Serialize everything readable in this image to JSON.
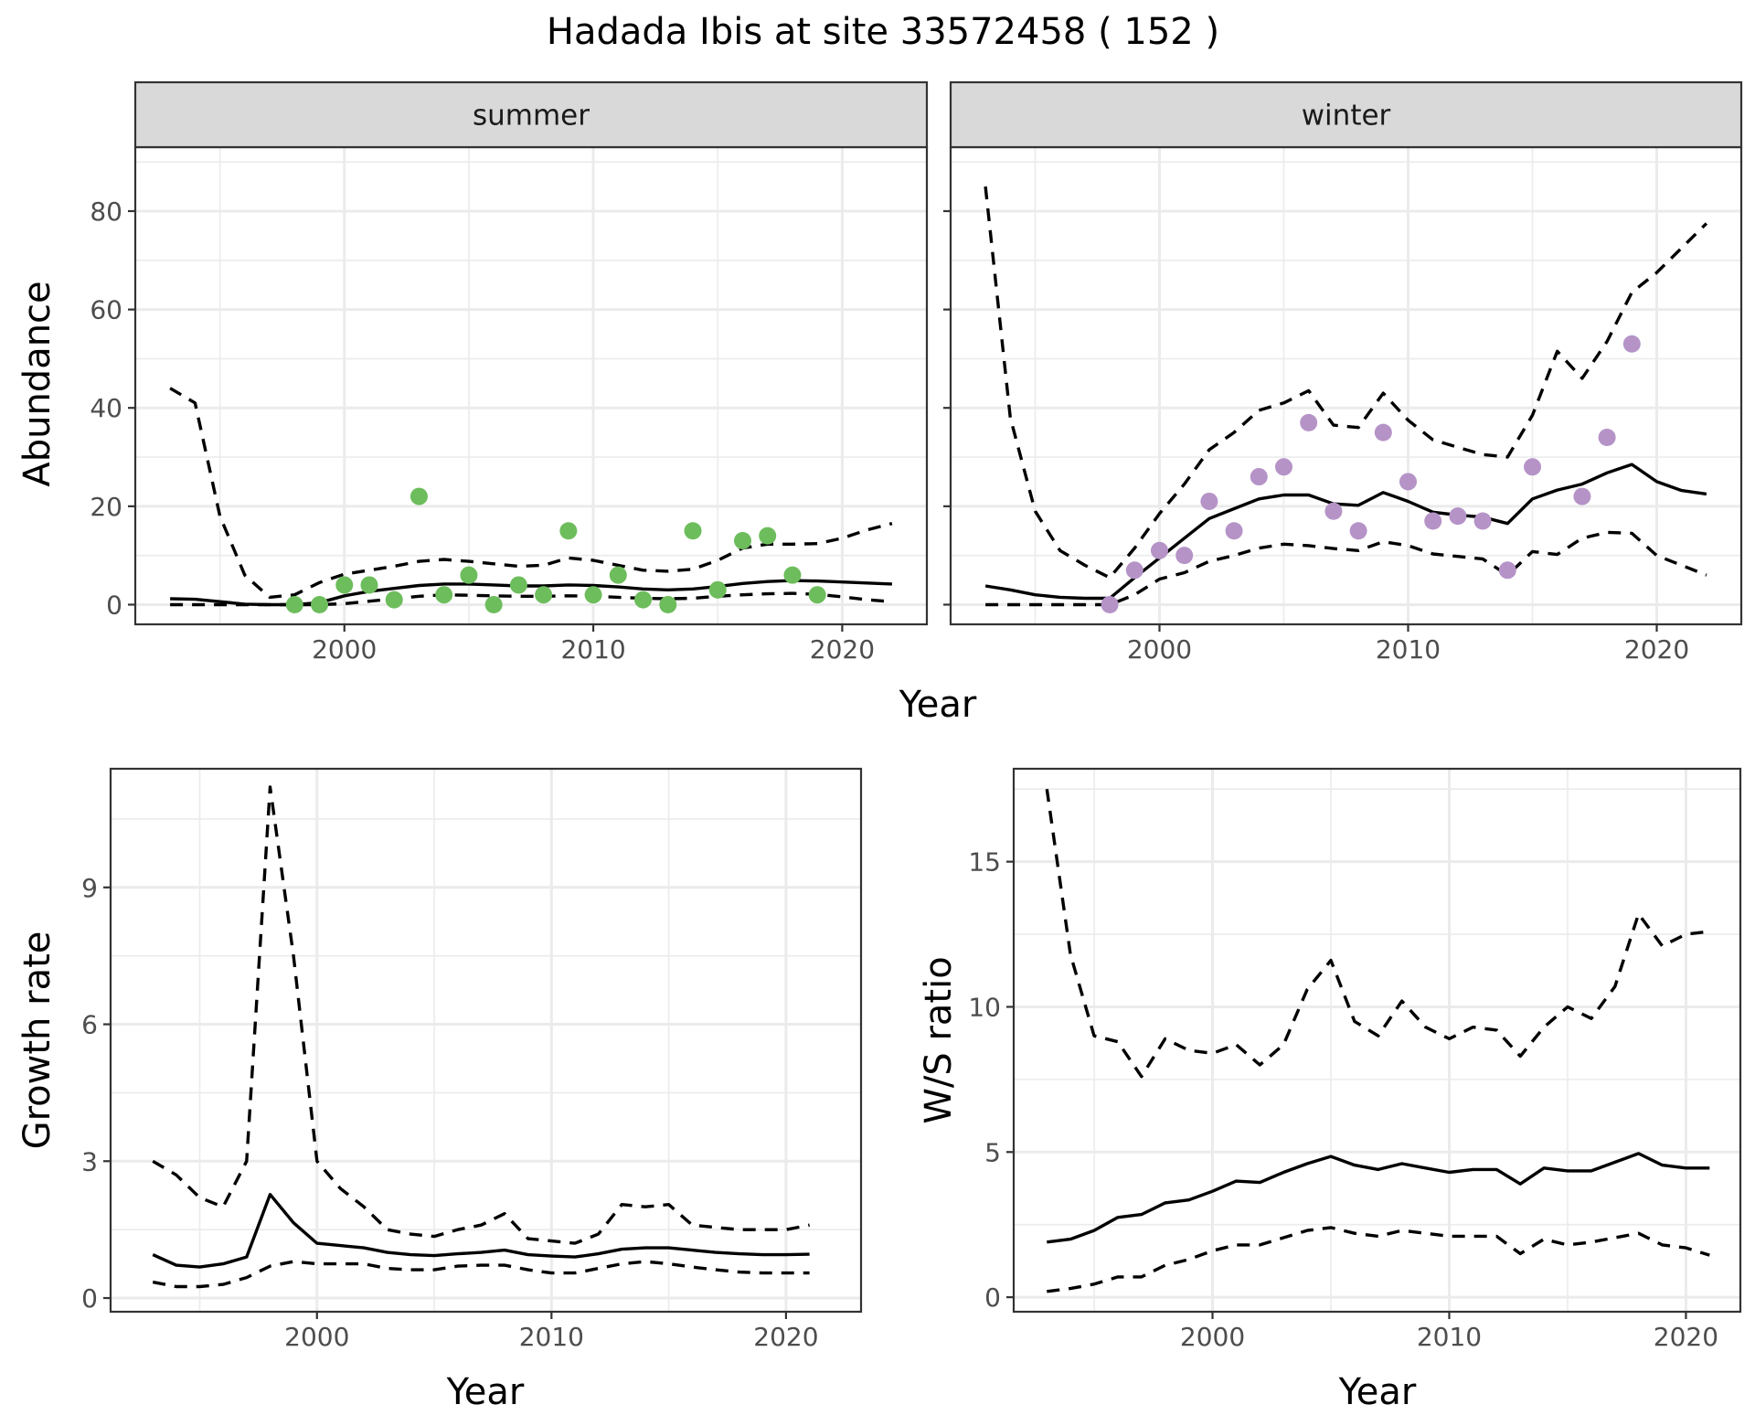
{
  "title": "Hadada Ibis at site 33572458 ( 152 )",
  "colors": {
    "summer_points": "#6dbd5c",
    "winter_points": "#b593c7",
    "lines": "#000000",
    "strip_bg": "#d9d9d9",
    "grid": "#ebebeb"
  },
  "chart_data": [
    {
      "id": "abundance",
      "type": "scatter+line",
      "facet_title": "summer",
      "xlabel": "Year",
      "ylabel": "Abundance",
      "xlim": [
        1991.6,
        2023.4
      ],
      "ylim": [
        -4,
        93
      ],
      "xticks": [
        2000,
        2010,
        2020
      ],
      "yticks": [
        0,
        20,
        40,
        60,
        80
      ],
      "grid": true,
      "points": {
        "x": [
          1998,
          1999,
          2000,
          2001,
          2002,
          2003,
          2004,
          2005,
          2006,
          2007,
          2008,
          2009,
          2010,
          2011,
          2012,
          2013,
          2014,
          2015,
          2016,
          2017,
          2018,
          2019
        ],
        "y": [
          0,
          0,
          4,
          4,
          1,
          22,
          2,
          6,
          0,
          4,
          2,
          15,
          2,
          6,
          1,
          0,
          15,
          3,
          13,
          14,
          6,
          2
        ]
      },
      "series": [
        {
          "name": "mean",
          "style": "solid",
          "x": [
            1993,
            1994,
            1995,
            1996,
            1997,
            1998,
            1999,
            2000,
            2001,
            2002,
            2003,
            2004,
            2005,
            2006,
            2007,
            2008,
            2009,
            2010,
            2011,
            2012,
            2013,
            2014,
            2015,
            2016,
            2017,
            2018,
            2019,
            2020,
            2021,
            2022
          ],
          "y": [
            1.2,
            1.1,
            0.6,
            0.1,
            0,
            0,
            0.4,
            1.8,
            2.7,
            3.3,
            3.9,
            4.2,
            4.2,
            4.0,
            3.8,
            3.8,
            4.0,
            3.9,
            3.6,
            3.2,
            3.0,
            3.2,
            3.7,
            4.3,
            4.7,
            4.9,
            4.8,
            4.6,
            4.4,
            4.2
          ]
        },
        {
          "name": "upper",
          "style": "dashed",
          "x": [
            1993,
            1994,
            1995,
            1996,
            1997,
            1998,
            1999,
            2000,
            2001,
            2002,
            2003,
            2004,
            2005,
            2006,
            2007,
            2008,
            2009,
            2010,
            2011,
            2012,
            2013,
            2014,
            2015,
            2016,
            2017,
            2018,
            2019,
            2020,
            2021,
            2022
          ],
          "y": [
            44,
            41,
            18,
            6,
            1.5,
            2,
            4.5,
            6.2,
            7,
            7.8,
            8.8,
            9.2,
            8.8,
            8.3,
            7.8,
            8,
            9.5,
            9.0,
            8.0,
            7.0,
            6.8,
            7.2,
            9.0,
            11.5,
            12.3,
            12.3,
            12.4,
            13.5,
            15.2,
            16.5
          ]
        },
        {
          "name": "lower",
          "style": "dashed",
          "x": [
            1993,
            1994,
            1995,
            1996,
            1997,
            1998,
            1999,
            2000,
            2001,
            2002,
            2003,
            2004,
            2005,
            2006,
            2007,
            2008,
            2009,
            2010,
            2011,
            2012,
            2013,
            2014,
            2015,
            2016,
            2017,
            2018,
            2019,
            2020,
            2021,
            2022
          ],
          "y": [
            0,
            0,
            0,
            0,
            0,
            0,
            0,
            0.2,
            0.7,
            1.2,
            1.7,
            2.0,
            1.9,
            1.8,
            1.7,
            1.7,
            1.8,
            1.7,
            1.5,
            1.3,
            1.2,
            1.3,
            1.7,
            2.0,
            2.2,
            2.3,
            2.1,
            1.6,
            1.0,
            0.6
          ]
        }
      ]
    },
    {
      "id": "abundance-winter",
      "type": "scatter+line",
      "facet_title": "winter",
      "xlabel": "Year",
      "ylabel": "Abundance",
      "xlim": [
        1991.6,
        2023.4
      ],
      "ylim": [
        -4,
        93
      ],
      "xticks": [
        2000,
        2010,
        2020
      ],
      "yticks": [
        0,
        20,
        40,
        60,
        80
      ],
      "grid": true,
      "points": {
        "x": [
          1998,
          1999,
          2000,
          2001,
          2002,
          2003,
          2004,
          2005,
          2006,
          2007,
          2008,
          2009,
          2010,
          2011,
          2012,
          2013,
          2014,
          2015,
          2017,
          2018,
          2019
        ],
        "y": [
          0,
          7,
          11,
          10,
          21,
          15,
          26,
          28,
          37,
          19,
          15,
          35,
          25,
          17,
          18,
          17,
          7,
          28,
          22,
          34,
          53
        ]
      },
      "series": [
        {
          "name": "mean",
          "style": "solid",
          "x": [
            1993,
            1994,
            1995,
            1996,
            1997,
            1998,
            1999,
            2000,
            2001,
            2002,
            2003,
            2004,
            2005,
            2006,
            2007,
            2008,
            2009,
            2010,
            2011,
            2012,
            2013,
            2014,
            2015,
            2016,
            2017,
            2018,
            2019,
            2020,
            2021,
            2022
          ],
          "y": [
            3.8,
            3.0,
            2.0,
            1.5,
            1.3,
            1.3,
            5.5,
            9.5,
            13.5,
            17.5,
            19.5,
            21.5,
            22.3,
            22.3,
            20.5,
            20.2,
            22.8,
            21.0,
            18.8,
            18.2,
            17.8,
            16.5,
            21.5,
            23.3,
            24.5,
            26.8,
            28.5,
            25,
            23.2,
            22.5
          ]
        },
        {
          "name": "upper",
          "style": "dashed",
          "x": [
            1993,
            1994,
            1995,
            1996,
            1997,
            1998,
            1999,
            2000,
            2001,
            2002,
            2003,
            2004,
            2005,
            2006,
            2007,
            2008,
            2009,
            2010,
            2011,
            2012,
            2013,
            2014,
            2015,
            2016,
            2017,
            2018,
            2019,
            2020,
            2021,
            2022
          ],
          "y": [
            85,
            38,
            19,
            11,
            8,
            5.5,
            11.5,
            18.5,
            24.5,
            31.5,
            35,
            39.5,
            41,
            43.5,
            36.5,
            36,
            43,
            37.5,
            33.5,
            32,
            30.5,
            30,
            38.5,
            51.5,
            46,
            53.5,
            63.5,
            67.5,
            72.5,
            77.5
          ]
        },
        {
          "name": "lower",
          "style": "dashed",
          "x": [
            1993,
            1994,
            1995,
            1996,
            1997,
            1998,
            1999,
            2000,
            2001,
            2002,
            2003,
            2004,
            2005,
            2006,
            2007,
            2008,
            2009,
            2010,
            2011,
            2012,
            2013,
            2014,
            2015,
            2016,
            2017,
            2018,
            2019,
            2020,
            2021,
            2022
          ],
          "y": [
            0,
            0,
            0,
            0,
            0,
            0,
            2,
            5.2,
            6.5,
            8.8,
            10,
            11.5,
            12.3,
            12,
            11.4,
            11,
            12.8,
            12,
            10.3,
            9.8,
            9.3,
            6,
            10.8,
            10.2,
            13.5,
            14.7,
            14.5,
            10,
            8,
            6
          ]
        }
      ]
    },
    {
      "id": "growth",
      "type": "line",
      "xlabel": "Year",
      "ylabel": "Growth rate",
      "xlim": [
        1991.2,
        2023.2
      ],
      "ylim": [
        -0.3,
        11.6
      ],
      "xticks": [
        2000,
        2010,
        2020
      ],
      "yticks": [
        0,
        3,
        6,
        9
      ],
      "grid": true,
      "series": [
        {
          "name": "mean",
          "style": "solid",
          "x": [
            1993,
            1994,
            1995,
            1996,
            1997,
            1998,
            1999,
            2000,
            2001,
            2002,
            2003,
            2004,
            2005,
            2006,
            2007,
            2008,
            2009,
            2010,
            2011,
            2012,
            2013,
            2014,
            2015,
            2016,
            2017,
            2018,
            2019,
            2020,
            2021
          ],
          "y": [
            0.95,
            0.72,
            0.68,
            0.75,
            0.9,
            2.27,
            1.65,
            1.2,
            1.15,
            1.1,
            1.0,
            0.95,
            0.93,
            0.97,
            1.0,
            1.05,
            0.95,
            0.92,
            0.9,
            0.97,
            1.07,
            1.1,
            1.1,
            1.05,
            1.0,
            0.97,
            0.95,
            0.95,
            0.96
          ]
        },
        {
          "name": "upper",
          "style": "dashed",
          "x": [
            1993,
            1994,
            1995,
            1996,
            1997,
            1998,
            1999,
            2000,
            2001,
            2002,
            2003,
            2004,
            2005,
            2006,
            2007,
            2008,
            2009,
            2010,
            2011,
            2012,
            2013,
            2014,
            2015,
            2016,
            2017,
            2018,
            2019,
            2020,
            2021
          ],
          "y": [
            3.0,
            2.7,
            2.2,
            2.0,
            3.0,
            11.2,
            7.5,
            3.0,
            2.4,
            2.0,
            1.5,
            1.4,
            1.35,
            1.5,
            1.6,
            1.85,
            1.3,
            1.25,
            1.2,
            1.4,
            2.05,
            2.0,
            2.05,
            1.6,
            1.55,
            1.5,
            1.5,
            1.5,
            1.6
          ]
        },
        {
          "name": "lower",
          "style": "dashed",
          "x": [
            1993,
            1994,
            1995,
            1996,
            1997,
            1998,
            1999,
            2000,
            2001,
            2002,
            2003,
            2004,
            2005,
            2006,
            2007,
            2008,
            2009,
            2010,
            2011,
            2012,
            2013,
            2014,
            2015,
            2016,
            2017,
            2018,
            2019,
            2020,
            2021
          ],
          "y": [
            0.35,
            0.25,
            0.25,
            0.3,
            0.45,
            0.7,
            0.8,
            0.75,
            0.75,
            0.75,
            0.65,
            0.62,
            0.62,
            0.7,
            0.72,
            0.72,
            0.62,
            0.55,
            0.55,
            0.65,
            0.75,
            0.8,
            0.75,
            0.68,
            0.62,
            0.57,
            0.55,
            0.55,
            0.55
          ]
        }
      ]
    },
    {
      "id": "ws-ratio",
      "type": "line",
      "xlabel": "Year",
      "ylabel": "W/S ratio",
      "xlim": [
        1991.6,
        2022.3
      ],
      "ylim": [
        -0.5,
        18.2
      ],
      "xticks": [
        2000,
        2010,
        2020
      ],
      "yticks": [
        0,
        5,
        10,
        15
      ],
      "grid": true,
      "series": [
        {
          "name": "mean",
          "style": "solid",
          "x": [
            1993,
            1994,
            1995,
            1996,
            1997,
            1998,
            1999,
            2000,
            2001,
            2002,
            2003,
            2004,
            2005,
            2006,
            2007,
            2008,
            2009,
            2010,
            2011,
            2012,
            2013,
            2014,
            2015,
            2016,
            2017,
            2018,
            2019,
            2020,
            2021
          ],
          "y": [
            1.9,
            2.0,
            2.3,
            2.75,
            2.85,
            3.25,
            3.35,
            3.65,
            4.0,
            3.95,
            4.3,
            4.6,
            4.85,
            4.55,
            4.4,
            4.6,
            4.45,
            4.3,
            4.4,
            4.4,
            3.9,
            4.45,
            4.35,
            4.35,
            4.65,
            4.95,
            4.55,
            4.45,
            4.45
          ]
        },
        {
          "name": "upper",
          "style": "dashed",
          "x": [
            1993,
            1994,
            1995,
            1996,
            1997,
            1998,
            1999,
            2000,
            2001,
            2002,
            2003,
            2004,
            2005,
            2006,
            2007,
            2008,
            2009,
            2010,
            2011,
            2012,
            2013,
            2014,
            2015,
            2016,
            2017,
            2018,
            2019,
            2020,
            2021
          ],
          "y": [
            17.5,
            11.8,
            9.0,
            8.8,
            7.6,
            8.9,
            8.5,
            8.4,
            8.7,
            8.0,
            8.7,
            10.6,
            11.6,
            9.5,
            9.0,
            10.2,
            9.3,
            8.9,
            9.3,
            9.2,
            8.3,
            9.3,
            10.0,
            9.6,
            10.7,
            13.2,
            12.1,
            12.5,
            12.6
          ]
        },
        {
          "name": "lower",
          "style": "dashed",
          "x": [
            1993,
            1994,
            1995,
            1996,
            1997,
            1998,
            1999,
            2000,
            2001,
            2002,
            2003,
            2004,
            2005,
            2006,
            2007,
            2008,
            2009,
            2010,
            2011,
            2012,
            2013,
            2014,
            2015,
            2016,
            2017,
            2018,
            2019,
            2020,
            2021
          ],
          "y": [
            0.2,
            0.3,
            0.45,
            0.7,
            0.7,
            1.1,
            1.3,
            1.6,
            1.8,
            1.8,
            2.05,
            2.3,
            2.4,
            2.2,
            2.1,
            2.3,
            2.2,
            2.1,
            2.1,
            2.1,
            1.5,
            2.0,
            1.8,
            1.9,
            2.05,
            2.2,
            1.8,
            1.7,
            1.45
          ]
        }
      ]
    }
  ]
}
